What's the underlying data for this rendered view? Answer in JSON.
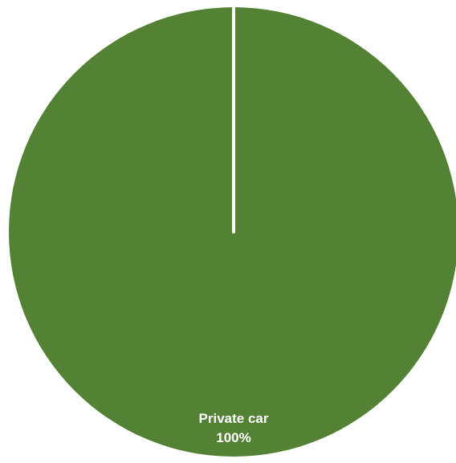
{
  "chart_data": {
    "type": "pie",
    "title": "",
    "legend": "none",
    "slices": [
      {
        "label": "Private car",
        "value": 100,
        "percent_label": "100%",
        "color": "#548235"
      }
    ],
    "slice_border_color": "#ffffff"
  }
}
